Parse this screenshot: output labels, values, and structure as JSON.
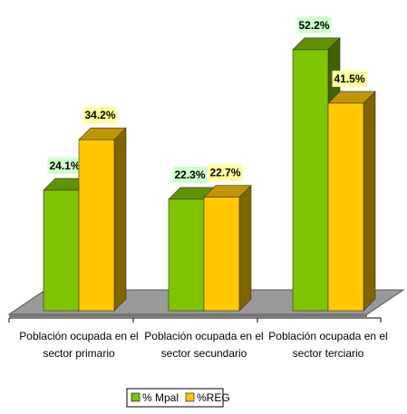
{
  "chart_data": {
    "type": "bar3d",
    "categories": [
      "Población ocupada en el sector primario",
      "Población ocupada en el sector secundario",
      "Población ocupada en el sector terciario"
    ],
    "series": [
      {
        "name": "% Mpal",
        "color": "#7fc400",
        "values": [
          24.1,
          22.3,
          52.2
        ],
        "value_labels": [
          "24.1%",
          "22.3%",
          "52.2%"
        ],
        "label_bg": "#ccffcc"
      },
      {
        "name": "%REG",
        "color": "#ffc800",
        "values": [
          34.2,
          22.7,
          41.5
        ],
        "value_labels": [
          "34.2%",
          "22.7%",
          "41.5%"
        ],
        "label_bg": "#ffff99"
      }
    ],
    "legend": "bottom"
  }
}
